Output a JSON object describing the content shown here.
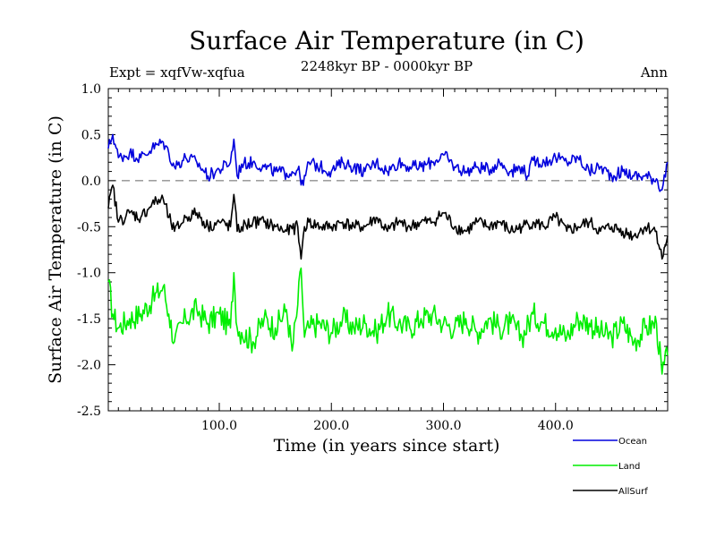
{
  "chart_data": {
    "type": "line",
    "title": "Surface Air Temperature (in C)",
    "subtitle": "2248kyr BP - 0000kyr BP",
    "left_label": "Expt = xqfVw-xqfua",
    "right_label": "Ann",
    "xlabel": "Time (in years since start)",
    "ylabel": "Surface Air Temperature (in C)",
    "xlim": [
      1,
      500
    ],
    "ylim": [
      -2.5,
      1.0
    ],
    "xticks": [
      100,
      200,
      300,
      400
    ],
    "xtick_labels": [
      "100.0",
      "200.0",
      "300.0",
      "400.0"
    ],
    "yticks": [
      1.0,
      0.5,
      0.0,
      -0.5,
      -1.0,
      -1.5,
      -2.0,
      -2.5
    ],
    "ytick_labels": [
      "1.0",
      "0.5",
      "0.0",
      "-0.5",
      "-1.0",
      "-1.5",
      "-2.0",
      "-2.5"
    ],
    "zero_line": "dashed",
    "legend_position": "below-right",
    "series": [
      {
        "name": "Ocean",
        "color": "#0000dd",
        "x": [
          1,
          5,
          10,
          20,
          30,
          40,
          50,
          55,
          60,
          70,
          80,
          90,
          100,
          110,
          113,
          116,
          120,
          130,
          140,
          150,
          160,
          170,
          175,
          180,
          190,
          200,
          210,
          220,
          230,
          240,
          250,
          260,
          270,
          280,
          290,
          300,
          310,
          320,
          330,
          340,
          350,
          360,
          370,
          375,
          380,
          390,
          400,
          410,
          420,
          430,
          440,
          450,
          460,
          470,
          480,
          490,
          495,
          500
        ],
        "values": [
          0.35,
          0.5,
          0.25,
          0.3,
          0.25,
          0.35,
          0.42,
          0.3,
          0.15,
          0.25,
          0.2,
          0.05,
          0.12,
          0.2,
          0.45,
          0.05,
          0.18,
          0.2,
          0.15,
          0.1,
          0.08,
          0.12,
          -0.05,
          0.2,
          0.15,
          0.1,
          0.2,
          0.15,
          0.1,
          0.2,
          0.1,
          0.2,
          0.15,
          0.15,
          0.2,
          0.28,
          0.15,
          0.1,
          0.15,
          0.12,
          0.2,
          0.1,
          0.15,
          0.05,
          0.22,
          0.2,
          0.25,
          0.2,
          0.25,
          0.1,
          0.15,
          0.05,
          0.1,
          0.05,
          0.05,
          0.02,
          -0.1,
          0.2
        ]
      },
      {
        "name": "Land",
        "color": "#00ee00",
        "x": [
          1,
          5,
          10,
          20,
          30,
          40,
          50,
          55,
          60,
          70,
          80,
          90,
          100,
          110,
          113,
          116,
          120,
          130,
          140,
          150,
          160,
          165,
          170,
          173,
          176,
          180,
          190,
          200,
          210,
          220,
          230,
          240,
          250,
          260,
          270,
          280,
          290,
          300,
          310,
          320,
          330,
          340,
          350,
          360,
          370,
          380,
          390,
          400,
          410,
          420,
          430,
          440,
          450,
          460,
          470,
          480,
          490,
          495,
          500
        ],
        "values": [
          -1.1,
          -1.45,
          -1.6,
          -1.5,
          -1.45,
          -1.3,
          -1.15,
          -1.45,
          -1.75,
          -1.5,
          -1.4,
          -1.55,
          -1.45,
          -1.6,
          -1.0,
          -1.6,
          -1.65,
          -1.75,
          -1.5,
          -1.6,
          -1.4,
          -1.85,
          -1.35,
          -0.95,
          -1.7,
          -1.6,
          -1.55,
          -1.65,
          -1.5,
          -1.6,
          -1.55,
          -1.65,
          -1.45,
          -1.55,
          -1.6,
          -1.5,
          -1.45,
          -1.55,
          -1.6,
          -1.5,
          -1.65,
          -1.5,
          -1.6,
          -1.55,
          -1.7,
          -1.45,
          -1.55,
          -1.6,
          -1.7,
          -1.5,
          -1.55,
          -1.65,
          -1.7,
          -1.55,
          -1.75,
          -1.6,
          -1.55,
          -2.1,
          -1.9
        ]
      },
      {
        "name": "AllSurf",
        "color": "#000000",
        "x": [
          1,
          5,
          10,
          20,
          30,
          40,
          50,
          55,
          60,
          70,
          80,
          90,
          100,
          110,
          113,
          116,
          120,
          130,
          140,
          150,
          160,
          170,
          173,
          176,
          180,
          190,
          200,
          210,
          220,
          230,
          240,
          250,
          260,
          270,
          280,
          290,
          300,
          310,
          320,
          330,
          340,
          350,
          360,
          370,
          380,
          390,
          400,
          410,
          420,
          430,
          440,
          450,
          460,
          470,
          480,
          490,
          495,
          500
        ],
        "values": [
          -0.3,
          -0.05,
          -0.45,
          -0.35,
          -0.4,
          -0.25,
          -0.2,
          -0.4,
          -0.55,
          -0.4,
          -0.35,
          -0.5,
          -0.45,
          -0.5,
          -0.15,
          -0.55,
          -0.5,
          -0.45,
          -0.45,
          -0.5,
          -0.55,
          -0.5,
          -0.85,
          -0.5,
          -0.45,
          -0.5,
          -0.5,
          -0.45,
          -0.5,
          -0.5,
          -0.4,
          -0.55,
          -0.45,
          -0.5,
          -0.45,
          -0.45,
          -0.35,
          -0.5,
          -0.55,
          -0.45,
          -0.5,
          -0.45,
          -0.55,
          -0.5,
          -0.45,
          -0.5,
          -0.4,
          -0.55,
          -0.5,
          -0.45,
          -0.55,
          -0.5,
          -0.55,
          -0.6,
          -0.5,
          -0.55,
          -0.85,
          -0.6
        ]
      }
    ]
  }
}
